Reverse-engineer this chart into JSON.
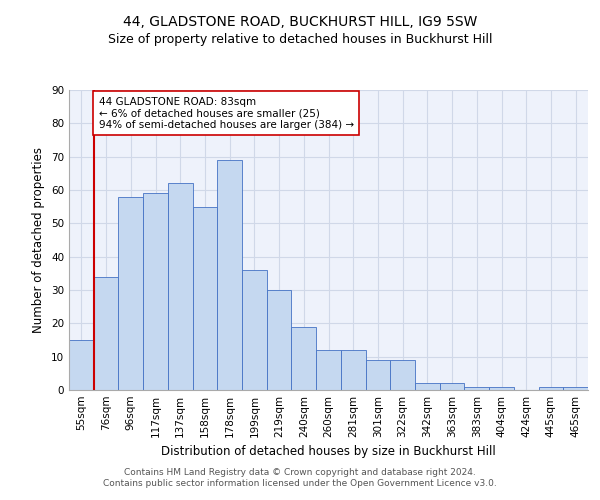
{
  "title": "44, GLADSTONE ROAD, BUCKHURST HILL, IG9 5SW",
  "subtitle": "Size of property relative to detached houses in Buckhurst Hill",
  "xlabel": "Distribution of detached houses by size in Buckhurst Hill",
  "ylabel": "Number of detached properties",
  "categories": [
    "55sqm",
    "76sqm",
    "96sqm",
    "117sqm",
    "137sqm",
    "158sqm",
    "178sqm",
    "199sqm",
    "219sqm",
    "240sqm",
    "260sqm",
    "281sqm",
    "301sqm",
    "322sqm",
    "342sqm",
    "363sqm",
    "383sqm",
    "404sqm",
    "424sqm",
    "445sqm",
    "465sqm"
  ],
  "values": [
    15,
    34,
    58,
    59,
    62,
    55,
    69,
    36,
    30,
    19,
    12,
    12,
    9,
    9,
    2,
    2,
    1,
    1,
    0,
    1,
    1
  ],
  "bar_color": "#c5d8f0",
  "bar_edge_color": "#4472c4",
  "grid_color": "#d0d8e8",
  "background_color": "#eef2fb",
  "vline_color": "#cc0000",
  "annotation_text": "44 GLADSTONE ROAD: 83sqm\n← 6% of detached houses are smaller (25)\n94% of semi-detached houses are larger (384) →",
  "annotation_box_color": "#ffffff",
  "annotation_box_edge": "#cc0000",
  "ylim": [
    0,
    90
  ],
  "yticks": [
    0,
    10,
    20,
    30,
    40,
    50,
    60,
    70,
    80,
    90
  ],
  "footer_text": "Contains HM Land Registry data © Crown copyright and database right 2024.\nContains public sector information licensed under the Open Government Licence v3.0.",
  "title_fontsize": 10,
  "subtitle_fontsize": 9,
  "xlabel_fontsize": 8.5,
  "ylabel_fontsize": 8.5,
  "tick_fontsize": 7.5,
  "annotation_fontsize": 7.5,
  "footer_fontsize": 6.5
}
